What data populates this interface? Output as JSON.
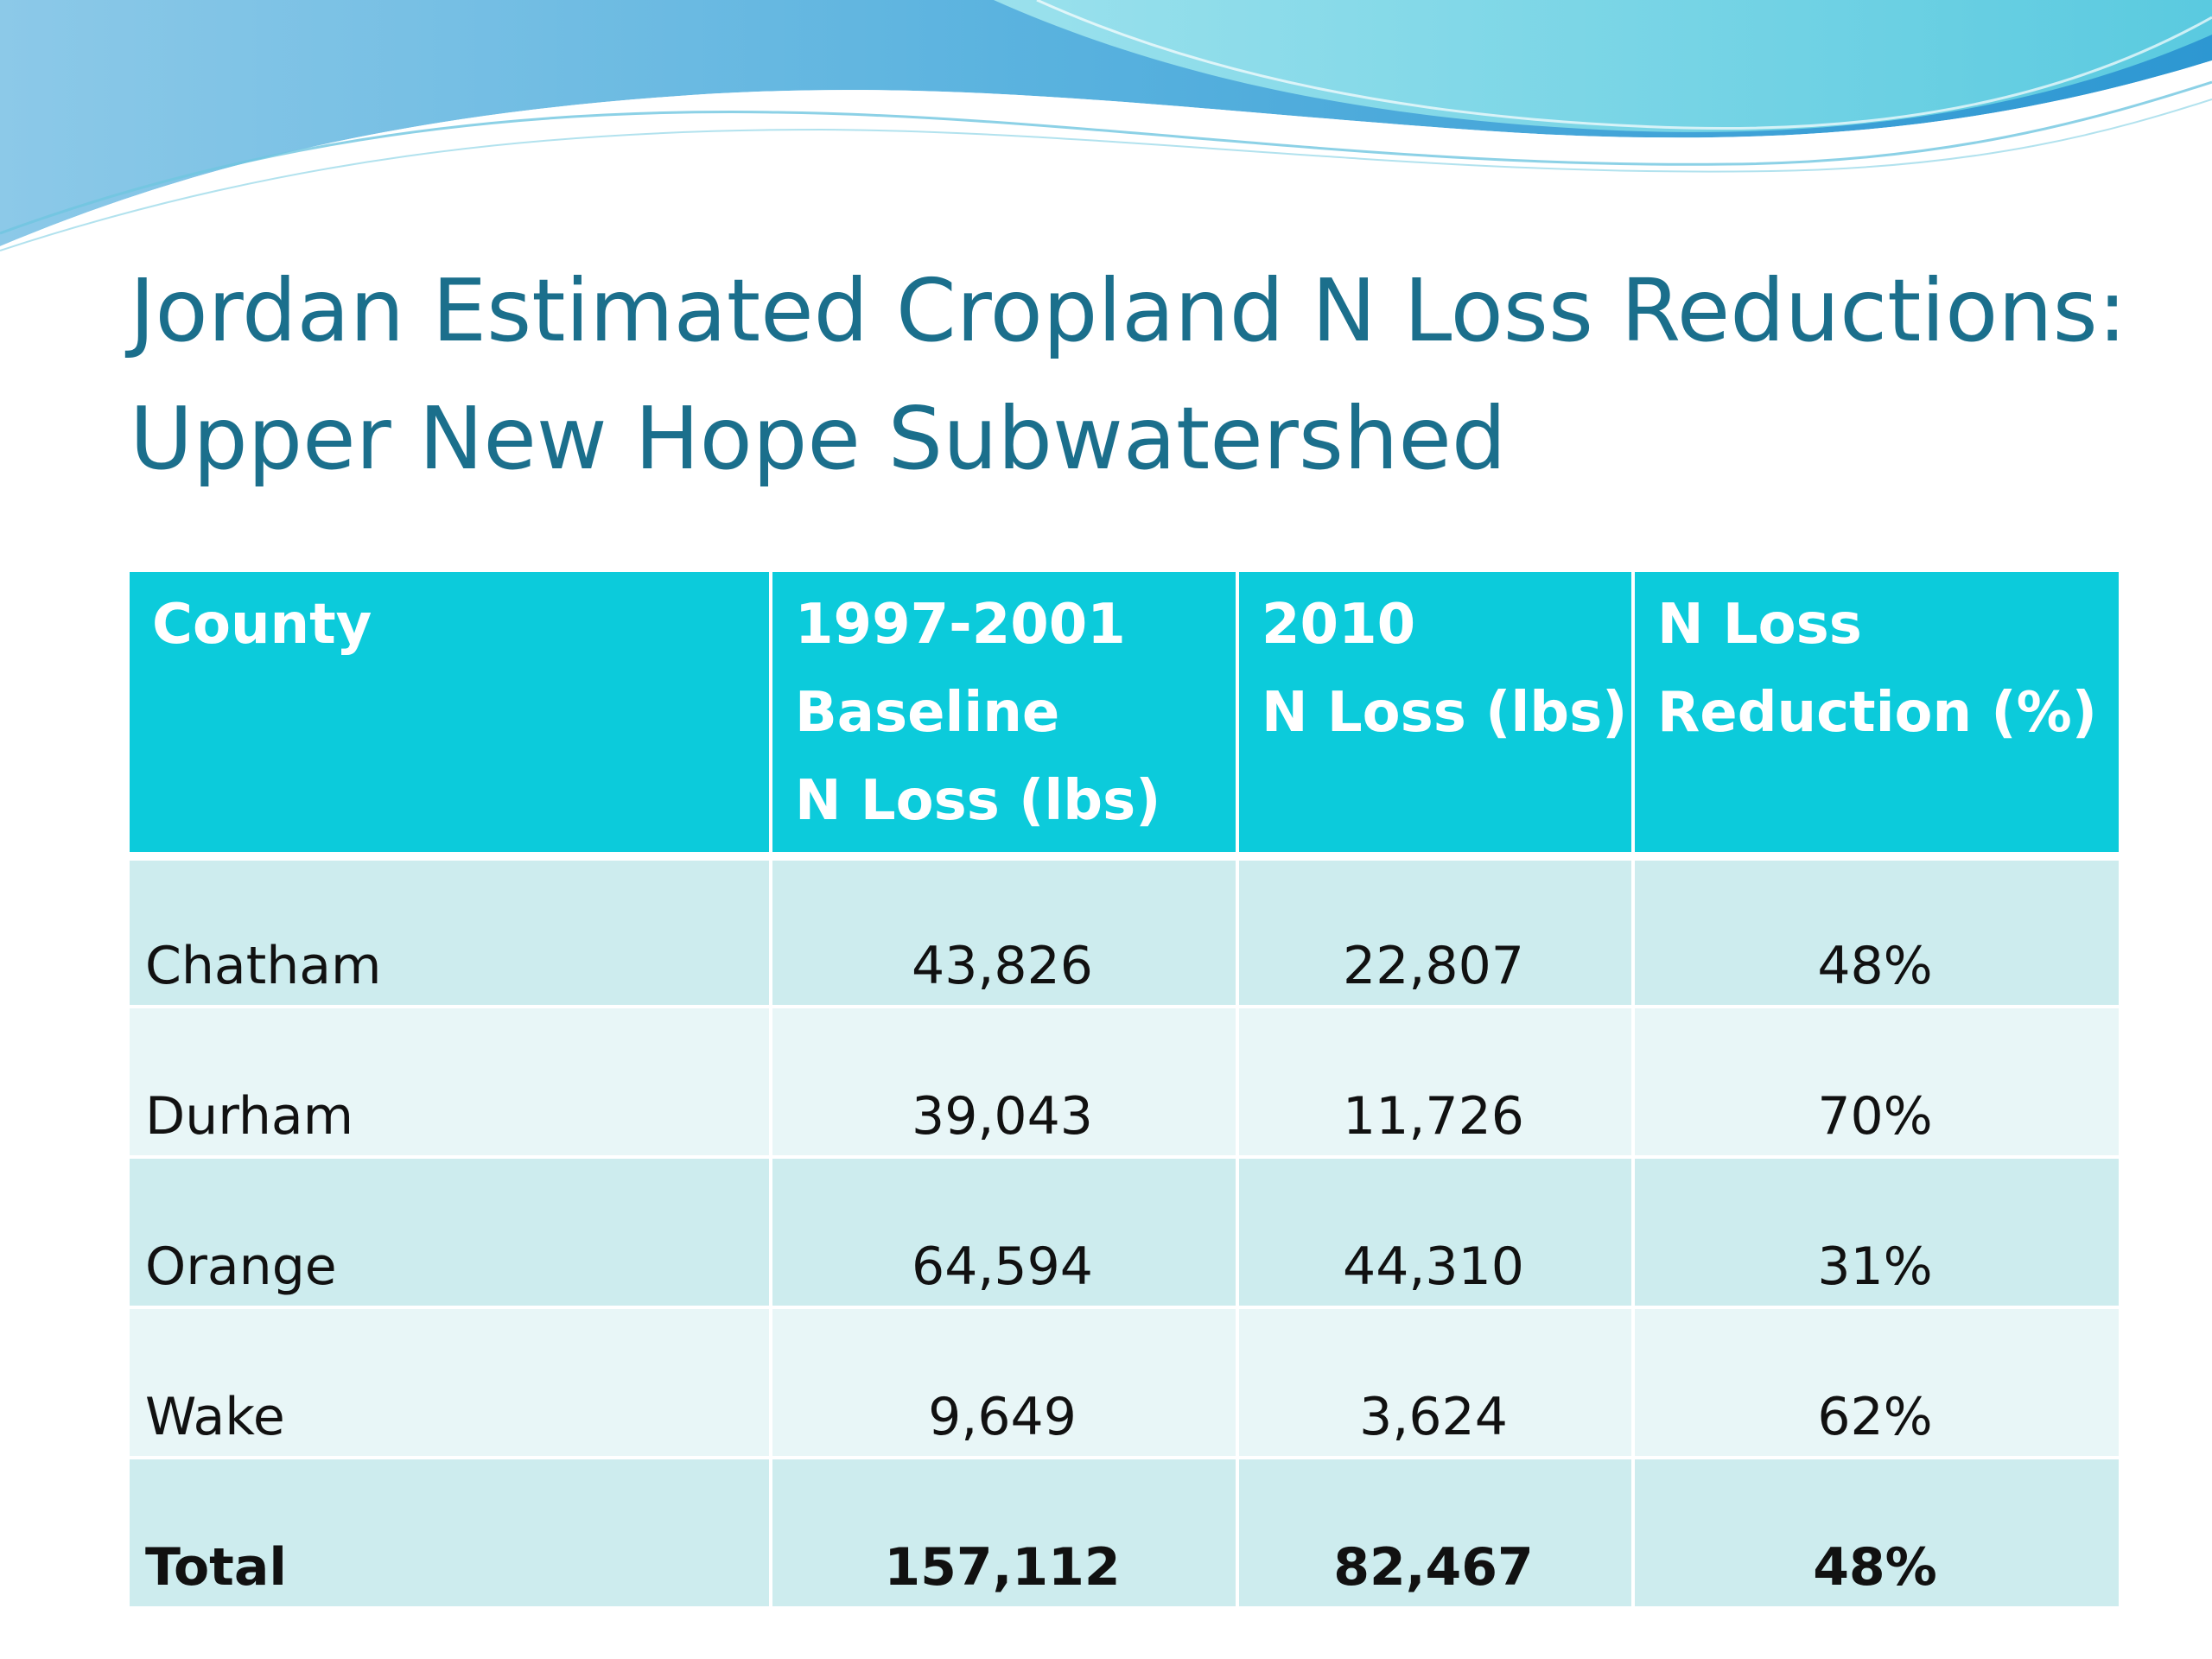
{
  "slide": {
    "title_line1": "Jordan Estimated Cropland N Loss Reductions:",
    "title_line2": "Upper New Hope Subwatershed"
  },
  "table": {
    "headers": [
      {
        "lines": [
          "County"
        ]
      },
      {
        "lines": [
          "1997-2001",
          "Baseline",
          "N Loss (lbs)"
        ]
      },
      {
        "lines": [
          "2010",
          "N Loss (lbs)"
        ]
      },
      {
        "lines": [
          "N Loss",
          "Reduction (%)"
        ]
      }
    ],
    "rows": [
      {
        "county": "Chatham",
        "baseline": "43,826",
        "loss_2010": "22,807",
        "reduction": "48%"
      },
      {
        "county": "Durham",
        "baseline": "39,043",
        "loss_2010": "11,726",
        "reduction": "70%"
      },
      {
        "county": "Orange",
        "baseline": "64,594",
        "loss_2010": "44,310",
        "reduction": "31%"
      },
      {
        "county": "Wake",
        "baseline": "9,649",
        "loss_2010": "3,624",
        "reduction": "62%"
      }
    ],
    "total": {
      "county": "Total",
      "baseline": "157,112",
      "loss_2010": "82,467",
      "reduction": "48%"
    }
  },
  "colors": {
    "title": "#1b6f8c",
    "header_bg": "#0ccbdb",
    "row_dark": "#cdecee",
    "row_light": "#e8f6f7",
    "wave_blue": "#3aa6d8",
    "wave_cyan": "#7fdce6"
  }
}
